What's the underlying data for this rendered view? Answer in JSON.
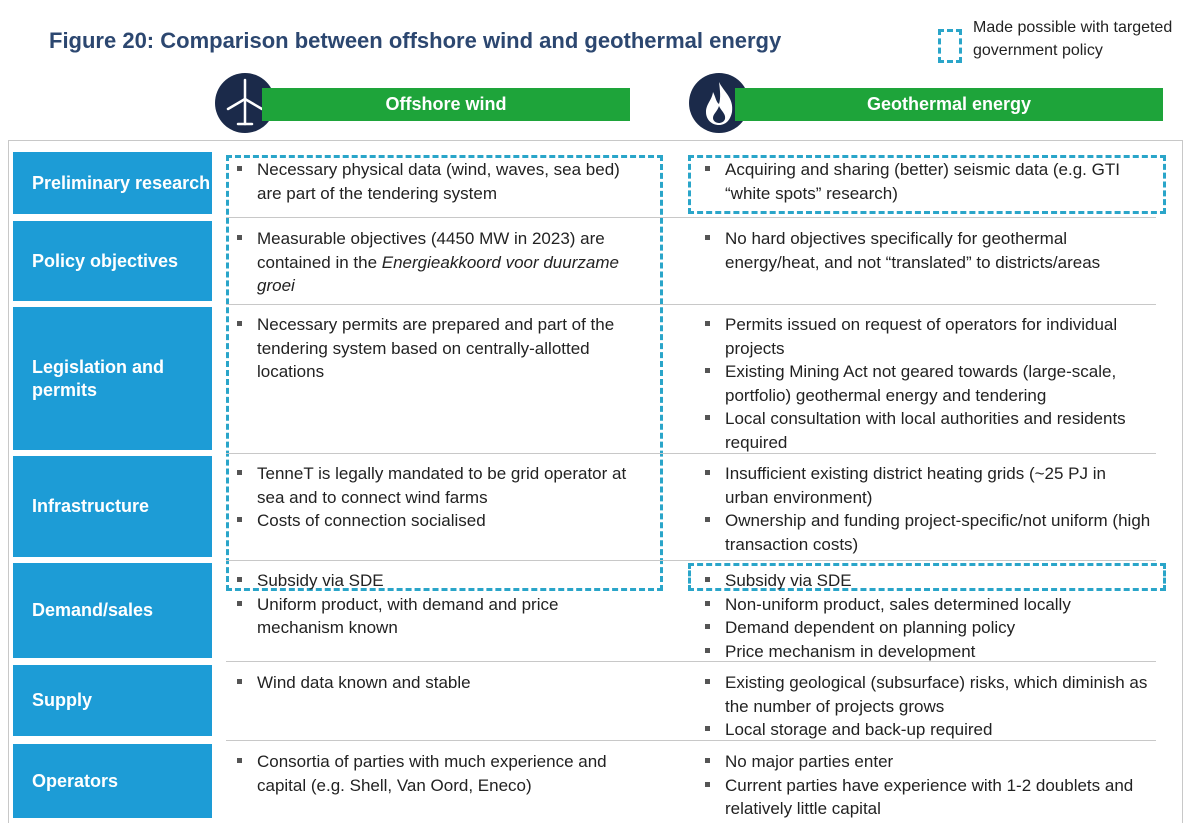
{
  "header": {
    "title": "Figure 20: Comparison between offshore wind and geothermal energy",
    "legend": "Made possible with targeted government policy"
  },
  "columns": [
    "Offshore wind",
    "Geothermal energy"
  ],
  "rows": [
    {
      "label": "Preliminary research",
      "wind": [
        "Necessary physical data (wind, waves, sea bed) are part of the tendering system"
      ],
      "geo": [
        "Acquiring and sharing (better) seismic data (e.g. GTI “white spots” research)"
      ]
    },
    {
      "label": "Policy objectives",
      "wind": [
        {
          "text": "Measurable objectives (4450 MW in 2023) are contained in the ",
          "italic": "Energieakkoord voor duurzame groei"
        }
      ],
      "geo": [
        "No hard objectives specifically for geothermal energy/heat, and not “translated” to districts/areas"
      ]
    },
    {
      "label": "Legislation and permits",
      "wind": [
        "Necessary permits are prepared and part of the tendering system based on centrally-allotted locations"
      ],
      "geo": [
        "Permits issued on request of operators for individual projects",
        "Existing Mining Act not geared towards (large-scale, portfolio) geothermal energy and tendering",
        "Local consultation with local authorities and residents required"
      ]
    },
    {
      "label": "Infrastructure",
      "wind": [
        "TenneT is legally mandated to be grid operator at sea and to connect wind farms",
        "Costs of connection socialised"
      ],
      "geo": [
        "Insufficient existing district heating grids (~25 PJ in urban environment)",
        "Ownership and funding project-specific/not uniform (high transaction costs)"
      ]
    },
    {
      "label": "Demand/sales",
      "wind": [
        "Subsidy via SDE",
        "Uniform product, with demand and price mechanism known"
      ],
      "geo": [
        "Subsidy via SDE",
        "Non-uniform product, sales determined locally",
        "Demand dependent on planning policy",
        "Price mechanism in development"
      ]
    },
    {
      "label": "Supply",
      "wind": [
        "Wind data known and stable"
      ],
      "geo": [
        "Existing geological (subsurface) risks, which diminish as the number of projects grows",
        "Local storage and back-up required"
      ]
    },
    {
      "label": "Operators",
      "wind": [
        "Consortia of parties with much experience and capital (e.g. Shell, Van Oord, Eneco)"
      ],
      "geo": [
        "No major parties enter",
        "Current parties have experience with 1-2 doublets and relatively little capital"
      ]
    }
  ]
}
